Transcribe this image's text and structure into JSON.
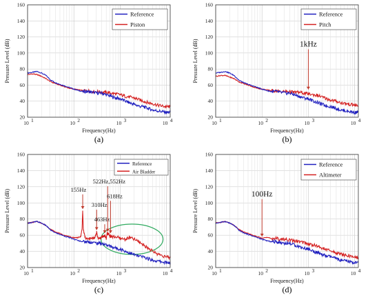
{
  "chart_data": [
    {
      "type": "line",
      "caption": "(a)",
      "xlabel": "Frequency(Hz)",
      "ylabel": "Pressure Level (dB)",
      "xscale": "log",
      "xlim": [
        10,
        12000
      ],
      "ylim": [
        20,
        160
      ],
      "yticks": [
        20,
        40,
        60,
        80,
        100,
        120,
        140,
        160
      ],
      "xtick_labels": [
        "10",
        "10",
        "10",
        "10"
      ],
      "xtick_exponents": [
        "1",
        "2",
        "3",
        "4"
      ],
      "grid": true,
      "legend_position": "top-right",
      "series": [
        {
          "name": "Reference",
          "color": "#1f1fbf",
          "x": [
            10,
            13,
            16,
            20,
            25,
            32,
            40,
            50,
            63,
            80,
            100,
            130,
            160,
            200,
            250,
            320,
            400,
            500,
            630,
            800,
            1000,
            1300,
            1600,
            2000,
            2500,
            3200,
            4000,
            5000,
            6300,
            8000,
            10000,
            12000
          ],
          "y": [
            75,
            76,
            77,
            75,
            72,
            66,
            63,
            61,
            59,
            57,
            55,
            53,
            52,
            52,
            51,
            50,
            50,
            48,
            46,
            44,
            43,
            40,
            38,
            36,
            34,
            33,
            31,
            29,
            28,
            27,
            26,
            26
          ]
        },
        {
          "name": "Piston",
          "color": "#d42020",
          "x": [
            10,
            13,
            16,
            20,
            25,
            32,
            40,
            50,
            63,
            80,
            100,
            130,
            160,
            200,
            250,
            320,
            400,
            500,
            630,
            800,
            1000,
            1300,
            1600,
            2000,
            2500,
            3200,
            4000,
            5000,
            6300,
            8000,
            10000,
            12000
          ],
          "y": [
            73,
            74,
            73,
            71,
            68,
            64,
            62,
            60,
            58,
            56,
            55,
            54,
            53,
            53,
            52,
            52,
            51,
            51,
            50,
            49,
            48,
            46,
            45,
            44,
            42,
            40,
            38,
            37,
            35,
            34,
            33,
            33
          ]
        }
      ]
    },
    {
      "type": "line",
      "caption": "(b)",
      "xlabel": "Frequency(Hz)",
      "ylabel": "Pressure Level (dB)",
      "xscale": "log",
      "xlim": [
        10,
        12000
      ],
      "ylim": [
        20,
        160
      ],
      "yticks": [
        20,
        40,
        60,
        80,
        100,
        120,
        140,
        160
      ],
      "xtick_labels": [
        "10",
        "10",
        "10",
        "10"
      ],
      "xtick_exponents": [
        "1",
        "2",
        "3",
        "4"
      ],
      "grid": true,
      "legend_position": "top-right",
      "annotations": [
        {
          "text": "1kHz",
          "x": 1000,
          "y": 52
        }
      ],
      "series": [
        {
          "name": "Reference",
          "color": "#1f1fbf",
          "x": [
            10,
            13,
            16,
            20,
            25,
            32,
            40,
            50,
            63,
            80,
            100,
            130,
            160,
            200,
            250,
            320,
            400,
            500,
            630,
            800,
            1000,
            1300,
            1600,
            2000,
            2500,
            3200,
            4000,
            5000,
            6300,
            8000,
            10000,
            12000
          ],
          "y": [
            75,
            76,
            77,
            75,
            72,
            66,
            63,
            61,
            59,
            57,
            55,
            53,
            52,
            52,
            51,
            50,
            50,
            48,
            46,
            44,
            43,
            40,
            38,
            36,
            34,
            33,
            31,
            29,
            28,
            27,
            26,
            26
          ]
        },
        {
          "name": "Pitch",
          "color": "#d42020",
          "x": [
            10,
            13,
            16,
            20,
            25,
            32,
            40,
            50,
            63,
            80,
            100,
            130,
            160,
            200,
            250,
            320,
            400,
            500,
            630,
            800,
            1000,
            1300,
            1600,
            2000,
            2500,
            3200,
            4000,
            5000,
            6300,
            8000,
            10000,
            12000
          ],
          "y": [
            71,
            72,
            72,
            70,
            68,
            64,
            62,
            60,
            58,
            56,
            55,
            54,
            53,
            53,
            52,
            52,
            52,
            51,
            51,
            50,
            49,
            48,
            47,
            45,
            43,
            41,
            40,
            38,
            37,
            36,
            35,
            34
          ]
        }
      ]
    },
    {
      "type": "line",
      "caption": "(c)",
      "xlabel": "Frequency(Hz)",
      "ylabel": "Pressure Level (dB)",
      "xscale": "log",
      "xlim": [
        10,
        12000
      ],
      "ylim": [
        20,
        160
      ],
      "yticks": [
        20,
        40,
        60,
        80,
        100,
        120,
        140,
        160
      ],
      "xtick_labels": [
        "10",
        "10",
        "10",
        "10"
      ],
      "xtick_exponents": [
        "1",
        "2",
        "3",
        "4"
      ],
      "grid": true,
      "legend_position": "top-right",
      "annotations": [
        {
          "text": "155Hz",
          "x": 155,
          "y": 90
        },
        {
          "text": "310Hz",
          "x": 310,
          "y": 64
        },
        {
          "text": "463Hz",
          "x": 463,
          "y": 60
        },
        {
          "text": "522Hz,552Hz",
          "x": 537,
          "y": 62
        },
        {
          "text": "618Hz",
          "x": 618,
          "y": 60
        }
      ],
      "highlight_ellipse": {
        "cx": 1800,
        "cy": 55,
        "color": "#2faa5f"
      },
      "series": [
        {
          "name": "Reference",
          "color": "#1f1fbf",
          "x": [
            10,
            13,
            16,
            20,
            25,
            32,
            40,
            50,
            63,
            80,
            100,
            130,
            160,
            200,
            250,
            320,
            400,
            500,
            630,
            800,
            1000,
            1300,
            1600,
            2000,
            2500,
            3200,
            4000,
            5000,
            6300,
            8000,
            10000,
            12000
          ],
          "y": [
            75,
            76,
            77,
            75,
            72,
            66,
            63,
            61,
            59,
            57,
            55,
            53,
            52,
            52,
            51,
            50,
            50,
            48,
            46,
            44,
            43,
            40,
            38,
            36,
            34,
            33,
            31,
            29,
            28,
            27,
            26,
            26
          ]
        },
        {
          "name": "Air Bladder",
          "color": "#d42020",
          "x": [
            10,
            13,
            16,
            20,
            25,
            32,
            40,
            50,
            63,
            80,
            100,
            120,
            140,
            150,
            155,
            160,
            175,
            200,
            250,
            290,
            310,
            330,
            400,
            463,
            500,
            522,
            552,
            600,
            618,
            640,
            800,
            1000,
            1300,
            1600,
            2000,
            2500,
            3200,
            4000,
            5000,
            6300,
            8000,
            10000,
            12000
          ],
          "y": [
            75,
            76,
            77,
            75,
            72,
            67,
            64,
            62,
            60,
            58,
            57,
            57,
            58,
            68,
            90,
            66,
            57,
            55,
            56,
            58,
            64,
            56,
            57,
            60,
            56,
            62,
            62,
            58,
            60,
            58,
            58,
            56,
            55,
            57,
            55,
            52,
            48,
            44,
            40,
            37,
            35,
            33,
            32
          ]
        }
      ]
    },
    {
      "type": "line",
      "caption": "(d)",
      "xlabel": "Frequency(Hz)",
      "ylabel": "Pressure Level (dB)",
      "xscale": "log",
      "xlim": [
        10,
        12000
      ],
      "ylim": [
        20,
        160
      ],
      "yticks": [
        20,
        40,
        60,
        80,
        100,
        120,
        140,
        160
      ],
      "xtick_labels": [
        "10",
        "10",
        "10",
        "10"
      ],
      "xtick_exponents": [
        "1",
        "2",
        "3",
        "4"
      ],
      "grid": true,
      "legend_position": "top-right",
      "annotations": [
        {
          "text": "100Hz",
          "x": 100,
          "y": 56
        }
      ],
      "series": [
        {
          "name": "Reference",
          "color": "#1f1fbf",
          "x": [
            10,
            13,
            16,
            20,
            25,
            32,
            40,
            50,
            63,
            80,
            100,
            130,
            160,
            200,
            250,
            320,
            400,
            500,
            630,
            800,
            1000,
            1300,
            1600,
            2000,
            2500,
            3200,
            4000,
            5000,
            6300,
            8000,
            10000,
            12000
          ],
          "y": [
            75,
            76,
            77,
            75,
            72,
            66,
            63,
            61,
            59,
            57,
            55,
            53,
            52,
            52,
            51,
            50,
            50,
            48,
            46,
            44,
            43,
            40,
            38,
            36,
            34,
            33,
            31,
            29,
            28,
            27,
            26,
            26
          ]
        },
        {
          "name": "Altimeter",
          "color": "#d42020",
          "x": [
            10,
            13,
            16,
            20,
            25,
            32,
            40,
            50,
            63,
            80,
            100,
            130,
            160,
            200,
            250,
            320,
            400,
            500,
            630,
            800,
            1000,
            1300,
            1600,
            2000,
            2500,
            3200,
            4000,
            5000,
            6300,
            8000,
            10000,
            12000
          ],
          "y": [
            75,
            76,
            77,
            75,
            72,
            67,
            64,
            62,
            60,
            58,
            57,
            57,
            56,
            56,
            55,
            55,
            54,
            53,
            52,
            51,
            49,
            48,
            46,
            44,
            42,
            40,
            38,
            37,
            35,
            34,
            33,
            32
          ]
        }
      ]
    }
  ]
}
